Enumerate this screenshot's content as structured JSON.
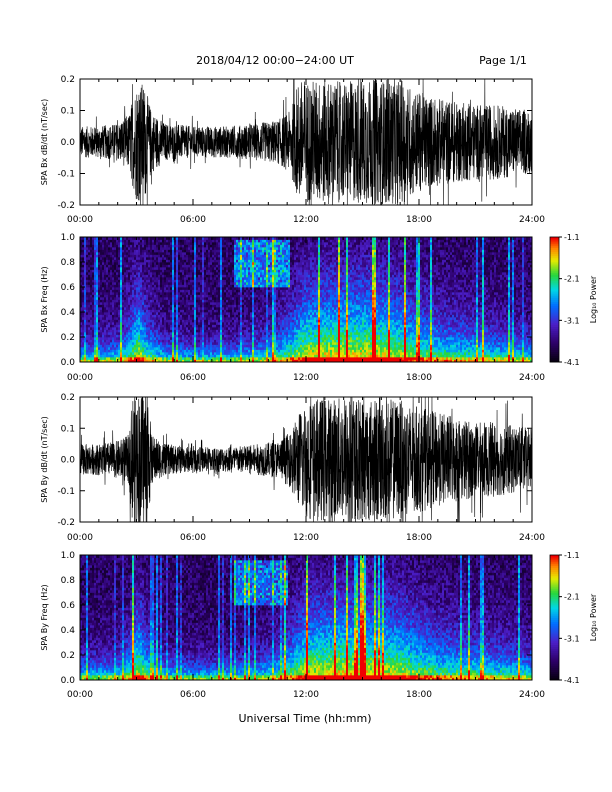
{
  "header": {
    "title": "2018/04/12   00:00−24:00 UT",
    "page": "Page 1/1"
  },
  "x_axis_label": "Universal Time (hh:mm)",
  "colorbar_label": "Log₁₀ Power",
  "chart_data": [
    {
      "type": "line",
      "ylabel": "SPA Bx dB/dt (nT/sec)",
      "xlabel": "",
      "x_ticks": [
        "00:00",
        "06:00",
        "12:00",
        "18:00",
        "24:00"
      ],
      "xlim_hours": [
        0,
        24
      ],
      "ylim": [
        -0.2,
        0.2
      ],
      "y_ticks": [
        "-0.2",
        "-0.1",
        "0.0",
        "0.1",
        "0.2"
      ],
      "color": "#000000",
      "envelope": {
        "hours": [
          0,
          1,
          2,
          2.6,
          3.0,
          3.4,
          3.8,
          4.5,
          6,
          8,
          9.5,
          10.5,
          11.2,
          11.6,
          12,
          13,
          14,
          15,
          16,
          17,
          18,
          19,
          20,
          21,
          22,
          23,
          24
        ],
        "amplitude": [
          0.05,
          0.05,
          0.06,
          0.09,
          0.19,
          0.19,
          0.1,
          0.06,
          0.05,
          0.05,
          0.06,
          0.07,
          0.1,
          0.2,
          0.2,
          0.2,
          0.19,
          0.2,
          0.2,
          0.2,
          0.16,
          0.14,
          0.13,
          0.12,
          0.12,
          0.11,
          0.1
        ]
      }
    },
    {
      "type": "heatmap",
      "ylabel": "SPA Bx Freq (Hz)",
      "x_ticks": [
        "00:00",
        "06:00",
        "12:00",
        "18:00",
        "24:00"
      ],
      "xlim_hours": [
        0,
        24
      ],
      "ylim": [
        0.0,
        1.0
      ],
      "y_ticks": [
        "0.0",
        "0.2",
        "0.4",
        "0.6",
        "0.8",
        "1.0"
      ],
      "colorbar": {
        "min": -4.1,
        "max": -1.1,
        "ticks": [
          "-1.1",
          "-2.1",
          "-3.1",
          "-4.1"
        ]
      },
      "activity": {
        "hours": [
          0,
          2,
          2.6,
          3.1,
          3.6,
          4.5,
          6,
          8,
          9.5,
          10.5,
          11.3,
          12,
          13,
          14,
          15,
          16,
          17,
          18,
          19,
          20,
          21,
          22,
          23,
          24
        ],
        "level": [
          0.15,
          0.18,
          0.4,
          0.85,
          0.4,
          0.15,
          0.12,
          0.12,
          0.18,
          0.3,
          0.55,
          0.9,
          0.95,
          1.0,
          1.0,
          0.95,
          0.8,
          0.6,
          0.45,
          0.4,
          0.35,
          0.3,
          0.25,
          0.2
        ]
      },
      "high_freq_patch": {
        "hours": [
          8.2,
          11.2
        ],
        "freq": [
          0.6,
          0.98
        ],
        "level": 0.45
      }
    },
    {
      "type": "line",
      "ylabel": "SPA By dB/dt (nT/sec)",
      "xlabel": "",
      "x_ticks": [
        "00:00",
        "06:00",
        "12:00",
        "18:00",
        "24:00"
      ],
      "xlim_hours": [
        0,
        24
      ],
      "ylim": [
        -0.2,
        0.2
      ],
      "y_ticks": [
        "-0.2",
        "-0.1",
        "0.0",
        "0.1",
        "0.2"
      ],
      "color": "#000000",
      "envelope": {
        "hours": [
          0,
          1,
          2,
          2.6,
          2.8,
          3.6,
          3.8,
          4.5,
          6,
          8,
          9.5,
          10.5,
          11.2,
          11.6,
          12,
          13,
          14,
          15,
          16,
          17,
          18,
          19,
          20,
          21,
          22,
          23,
          24
        ],
        "amplitude": [
          0.05,
          0.05,
          0.06,
          0.08,
          0.22,
          0.22,
          0.08,
          0.05,
          0.04,
          0.04,
          0.05,
          0.06,
          0.09,
          0.15,
          0.19,
          0.2,
          0.2,
          0.2,
          0.2,
          0.19,
          0.17,
          0.15,
          0.14,
          0.12,
          0.12,
          0.11,
          0.1
        ]
      }
    },
    {
      "type": "heatmap",
      "ylabel": "SPA By Freq (Hz)",
      "x_ticks": [
        "00:00",
        "06:00",
        "12:00",
        "18:00",
        "24:00"
      ],
      "xlim_hours": [
        0,
        24
      ],
      "ylim": [
        0.0,
        1.0
      ],
      "y_ticks": [
        "0.0",
        "0.2",
        "0.4",
        "0.6",
        "0.8",
        "1.0"
      ],
      "colorbar": {
        "min": -4.1,
        "max": -1.1,
        "ticks": [
          "-1.1",
          "-2.1",
          "-3.1",
          "-4.1"
        ]
      },
      "activity": {
        "hours": [
          0,
          2,
          2.6,
          3.1,
          3.6,
          4.5,
          6,
          8,
          9.5,
          10.5,
          11.3,
          12,
          13,
          14,
          15,
          16,
          17,
          18,
          19,
          20,
          21,
          22,
          23,
          24
        ],
        "level": [
          0.15,
          0.18,
          0.4,
          0.85,
          0.4,
          0.15,
          0.12,
          0.12,
          0.18,
          0.3,
          0.55,
          0.9,
          0.95,
          1.0,
          1.0,
          0.95,
          0.85,
          0.65,
          0.5,
          0.45,
          0.4,
          0.35,
          0.3,
          0.25
        ]
      },
      "high_freq_patch": {
        "hours": [
          8.2,
          11.0
        ],
        "freq": [
          0.6,
          0.95
        ],
        "level": 0.4
      }
    }
  ]
}
